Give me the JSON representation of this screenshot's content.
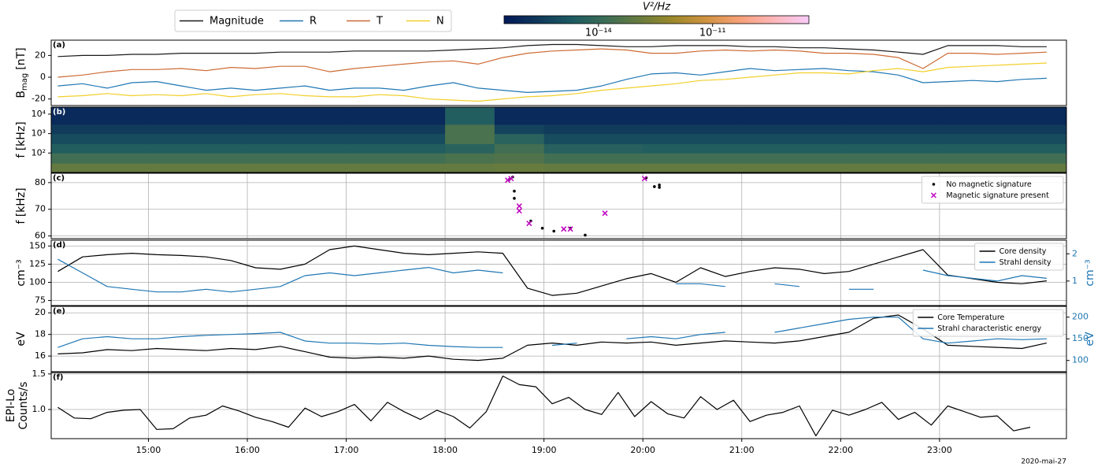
{
  "chart_data": [
    {
      "type": "line",
      "panel_label": "(a)",
      "ylabel_parts": [
        "B",
        "mag",
        "[nT]"
      ],
      "xlim": [
        "14:01",
        "00:17"
      ],
      "ylim": [
        -26,
        34
      ],
      "yticks": [
        -20,
        0,
        20
      ],
      "grid": false,
      "legend": "above",
      "x": [
        "14:05",
        "14:20",
        "14:35",
        "14:50",
        "15:05",
        "15:20",
        "15:35",
        "15:50",
        "16:05",
        "16:20",
        "16:35",
        "16:50",
        "17:05",
        "17:20",
        "17:35",
        "17:50",
        "18:05",
        "18:20",
        "18:35",
        "18:50",
        "19:05",
        "19:20",
        "19:35",
        "19:50",
        "20:05",
        "20:20",
        "20:35",
        "20:50",
        "21:05",
        "21:20",
        "21:35",
        "21:50",
        "22:05",
        "22:20",
        "22:35",
        "22:50",
        "23:05",
        "23:20",
        "23:35",
        "23:50",
        "00:05"
      ],
      "series": [
        {
          "name": "Magnitude",
          "color": "#1a1a1a",
          "values": [
            19,
            20,
            20,
            21,
            21,
            22,
            22,
            22,
            22,
            23,
            23,
            23,
            24,
            24,
            24,
            24,
            25,
            26,
            27,
            29,
            30,
            30,
            29,
            28,
            28,
            29,
            29,
            29,
            28,
            28,
            27,
            27,
            26,
            25,
            23,
            21,
            29,
            29,
            29,
            28,
            28
          ]
        },
        {
          "name": "R",
          "color": "#1f77b4",
          "values": [
            -8,
            -6,
            -10,
            -5,
            -4,
            -8,
            -12,
            -10,
            -12,
            -10,
            -8,
            -12,
            -10,
            -10,
            -12,
            -8,
            -5,
            -10,
            -12,
            -14,
            -13,
            -12,
            -8,
            -2,
            3,
            4,
            2,
            5,
            8,
            6,
            7,
            8,
            6,
            5,
            2,
            -5,
            -4,
            -3,
            -4,
            -2,
            -1
          ]
        },
        {
          "name": "T",
          "color": "#cd6a33",
          "values": [
            0,
            2,
            5,
            7,
            7,
            8,
            6,
            9,
            8,
            10,
            10,
            5,
            8,
            10,
            12,
            14,
            15,
            12,
            18,
            22,
            24,
            25,
            26,
            25,
            22,
            22,
            24,
            25,
            24,
            25,
            24,
            22,
            22,
            21,
            18,
            8,
            22,
            22,
            21,
            22,
            23
          ]
        },
        {
          "name": "N",
          "color": "#f2cf2a",
          "values": [
            -18,
            -17,
            -15,
            -17,
            -16,
            -17,
            -15,
            -18,
            -16,
            -15,
            -17,
            -18,
            -18,
            -16,
            -17,
            -20,
            -21,
            -22,
            -20,
            -18,
            -17,
            -15,
            -12,
            -10,
            -8,
            -6,
            -3,
            -2,
            0,
            2,
            4,
            4,
            3,
            6,
            8,
            5,
            9,
            10,
            11,
            12,
            13
          ]
        }
      ]
    },
    {
      "type": "heatmap",
      "panel_label": "(b)",
      "ylabel": "f [kHz]",
      "xlim": [
        "14:01",
        "00:17"
      ],
      "ylog": true,
      "ylim": [
        10,
        23000
      ],
      "yticks": [
        {
          "value": 100,
          "label": "10²"
        },
        {
          "value": 1000,
          "label": "10³"
        },
        {
          "value": 10000,
          "label": "10⁴"
        }
      ],
      "x_edges": [
        "14:01",
        "15:00",
        "16:00",
        "17:00",
        "18:00",
        "18:30",
        "19:00",
        "20:00",
        "21:00",
        "22:00",
        "23:00",
        "00:17"
      ],
      "y_edges": [
        10,
        30,
        100,
        300,
        1000,
        3000,
        23000
      ],
      "z": [
        [
          1e-13,
          1e-13,
          1e-13,
          1e-13,
          1e-13,
          1.2e-13,
          1e-13,
          1e-13,
          1e-13,
          1e-13,
          1e-13
        ],
        [
          2e-14,
          2e-14,
          2e-14,
          2e-14,
          3e-14,
          4e-14,
          2e-14,
          2e-14,
          2e-14,
          2e-14,
          2e-14
        ],
        [
          3e-15,
          3e-15,
          3e-15,
          3e-15,
          5e-15,
          2e-14,
          4e-15,
          3e-15,
          3e-15,
          3e-15,
          3e-15
        ],
        [
          8e-16,
          8e-16,
          8e-16,
          8e-16,
          3e-14,
          5e-15,
          8e-16,
          8e-16,
          8e-16,
          8e-16,
          8e-16
        ],
        [
          3e-16,
          3e-16,
          3e-16,
          3e-16,
          3e-14,
          5e-16,
          3e-16,
          3e-16,
          3e-16,
          3e-16,
          3e-16
        ],
        [
          1e-16,
          1e-16,
          1e-16,
          1e-16,
          3e-15,
          1e-16,
          1e-16,
          1e-16,
          1e-16,
          1e-16,
          1e-16
        ]
      ],
      "colorbar": {
        "label": "V²/Hz",
        "lim": [
          3.3e-17,
          3.4e-09
        ],
        "ticks": [
          {
            "value": 1e-14,
            "label": "10⁻¹⁴"
          },
          {
            "value": 1e-11,
            "label": "10⁻¹¹"
          }
        ],
        "colors": [
          "#011959",
          "#10385a",
          "#1c5a62",
          "#3c6d56",
          "#687b3e",
          "#9d892b",
          "#d29343",
          "#f8a17b",
          "#fdb7bc",
          "#faccfa"
        ]
      }
    },
    {
      "type": "scatter",
      "panel_label": "(c)",
      "ylabel": "f [kHz]",
      "xlim": [
        "14:01",
        "00:17"
      ],
      "ylim": [
        59,
        83.5
      ],
      "yticks": [
        60,
        70,
        80
      ],
      "grid": true,
      "legend": "upper right",
      "series": [
        {
          "name": "No magnetic signature",
          "color": "#000000",
          "marker": "o",
          "x": [
            "18:39",
            "18:41",
            "18:42",
            "18:42",
            "18:52",
            "18:59",
            "19:06",
            "19:16",
            "19:25",
            "20:02",
            "20:07",
            "20:10",
            "20:10"
          ],
          "values": [
            81.2,
            82.1,
            76.8,
            74.1,
            65.6,
            62.9,
            61.8,
            62.9,
            60.3,
            81.8,
            78.5,
            78.2,
            79.1
          ]
        },
        {
          "name": "Magnetic signature present",
          "color": "#bf00bf",
          "marker": "x",
          "x": [
            "18:38",
            "18:40",
            "18:45",
            "18:45",
            "18:51",
            "19:12",
            "19:16",
            "19:37",
            "20:01"
          ],
          "values": [
            80.9,
            81.5,
            71.2,
            69.4,
            64.7,
            62.6,
            62.6,
            68.5,
            81.5
          ]
        }
      ]
    },
    {
      "type": "line",
      "panel_label": "(d)",
      "ylabel": "cm⁻³",
      "y2label": "cm⁻³",
      "xlim": [
        "14:01",
        "00:17"
      ],
      "ylim": [
        68,
        158
      ],
      "yticks": [
        75,
        100,
        125,
        150
      ],
      "y2lim": [
        0.1,
        2.5
      ],
      "y2ticks": [
        1,
        2
      ],
      "grid": true,
      "legend": "upper right",
      "x": [
        "14:05",
        "14:20",
        "14:35",
        "14:50",
        "15:05",
        "15:20",
        "15:35",
        "15:50",
        "16:05",
        "16:20",
        "16:35",
        "16:50",
        "17:05",
        "17:20",
        "17:35",
        "17:50",
        "18:05",
        "18:20",
        "18:35",
        "18:50",
        "19:05",
        "19:20",
        "19:35",
        "19:50",
        "20:05",
        "20:20",
        "20:35",
        "20:50",
        "21:05",
        "21:20",
        "21:35",
        "21:50",
        "22:05",
        "22:20",
        "22:35",
        "22:50",
        "23:05",
        "23:20",
        "23:35",
        "23:50",
        "00:05"
      ],
      "series": [
        {
          "name": "Core density",
          "color": "#000000",
          "values": [
            115,
            135,
            138,
            140,
            138,
            137,
            135,
            130,
            120,
            118,
            125,
            145,
            150,
            145,
            140,
            138,
            140,
            142,
            140,
            92,
            82,
            85,
            95,
            105,
            112,
            100,
            120,
            108,
            115,
            120,
            118,
            112,
            115,
            125,
            135,
            145,
            110,
            105,
            100,
            98,
            102
          ]
        },
        {
          "name": "Strahl density",
          "color": "#1f77b4",
          "axis": "y2",
          "values": [
            1.8,
            1.3,
            0.8,
            0.7,
            0.6,
            0.6,
            0.7,
            0.6,
            0.7,
            0.8,
            1.2,
            1.3,
            1.2,
            1.3,
            1.4,
            1.5,
            1.3,
            1.4,
            1.3,
            null,
            null,
            0.7,
            null,
            1.2,
            null,
            0.9,
            0.9,
            0.8,
            null,
            0.9,
            0.8,
            null,
            0.7,
            0.7,
            null,
            1.4,
            1.2,
            1.1,
            1.0,
            1.2,
            1.1
          ]
        }
      ]
    },
    {
      "type": "line",
      "panel_label": "(e)",
      "ylabel": "eV",
      "y2label": "eV",
      "xlim": [
        "14:01",
        "00:17"
      ],
      "ylim": [
        14.55,
        20.6
      ],
      "yticks": [
        16,
        18,
        20
      ],
      "y2lim": [
        74,
        225
      ],
      "y2ticks": [
        100,
        150,
        200
      ],
      "grid": true,
      "legend": "upper right",
      "x": [
        "14:05",
        "14:20",
        "14:35",
        "14:50",
        "15:05",
        "15:20",
        "15:35",
        "15:50",
        "16:05",
        "16:20",
        "16:35",
        "16:50",
        "17:05",
        "17:20",
        "17:35",
        "17:50",
        "18:05",
        "18:20",
        "18:35",
        "18:50",
        "19:05",
        "19:20",
        "19:35",
        "19:50",
        "20:05",
        "20:20",
        "20:35",
        "20:50",
        "21:05",
        "21:20",
        "21:35",
        "21:50",
        "22:05",
        "22:20",
        "22:35",
        "22:50",
        "23:05",
        "23:20",
        "23:35",
        "23:50",
        "00:05"
      ],
      "series": [
        {
          "name": "Core Temperature",
          "color": "#000000",
          "values": [
            16.2,
            16.3,
            16.6,
            16.5,
            16.7,
            16.6,
            16.5,
            16.7,
            16.6,
            16.9,
            16.4,
            15.9,
            15.8,
            15.9,
            15.8,
            16.0,
            15.7,
            15.6,
            15.8,
            17.0,
            17.2,
            17.0,
            17.3,
            17.2,
            17.3,
            17.0,
            17.2,
            17.4,
            17.3,
            17.2,
            17.4,
            17.8,
            18.2,
            19.5,
            19.8,
            18.5,
            17.0,
            16.9,
            16.8,
            16.7,
            17.2
          ]
        },
        {
          "name": "Strahl characteristic energy",
          "color": "#1f77b4",
          "axis": "y2",
          "values": [
            130,
            150,
            155,
            150,
            150,
            155,
            158,
            160,
            162,
            165,
            145,
            140,
            140,
            138,
            140,
            135,
            132,
            130,
            130,
            null,
            135,
            140,
            null,
            150,
            155,
            150,
            160,
            165,
            null,
            165,
            175,
            185,
            195,
            200,
            200,
            150,
            140,
            145,
            150,
            148,
            150
          ]
        }
      ]
    },
    {
      "type": "line",
      "panel_label": "(f)",
      "ylabel_lines": [
        "EPI-Lo",
        "Counts/s"
      ],
      "xlim": [
        "14:01",
        "00:17"
      ],
      "ylim": [
        0.59,
        1.52
      ],
      "yticks": [
        {
          "value": 1,
          "label": "1.0"
        },
        1.5
      ],
      "grid": true,
      "xticks": [
        "15:00",
        "16:00",
        "17:00",
        "18:00",
        "19:00",
        "20:00",
        "21:00",
        "22:00",
        "23:00"
      ],
      "date": "2020-mai-27",
      "x": [
        "14:05",
        "14:15",
        "14:25",
        "14:35",
        "14:45",
        "14:55",
        "15:05",
        "15:15",
        "15:25",
        "15:35",
        "15:45",
        "15:55",
        "16:05",
        "16:15",
        "16:25",
        "16:35",
        "16:45",
        "16:55",
        "17:05",
        "17:15",
        "17:25",
        "17:35",
        "17:45",
        "17:55",
        "18:05",
        "18:15",
        "18:25",
        "18:35",
        "18:45",
        "18:55",
        "19:05",
        "19:15",
        "19:25",
        "19:35",
        "19:45",
        "19:55",
        "20:05",
        "20:15",
        "20:25",
        "20:35",
        "20:45",
        "20:55",
        "21:05",
        "21:15",
        "21:25",
        "21:35",
        "21:45",
        "21:55",
        "22:05",
        "22:15",
        "22:25",
        "22:35",
        "22:45",
        "22:55",
        "23:05",
        "23:15",
        "23:25",
        "23:35",
        "23:45",
        "23:55"
      ],
      "series": [
        {
          "color": "#000000",
          "values": [
            1.03,
            0.88,
            0.87,
            0.96,
            0.99,
            1.0,
            0.72,
            0.73,
            0.88,
            0.92,
            1.05,
            0.98,
            0.89,
            0.83,
            0.75,
            1.02,
            0.9,
            0.97,
            1.07,
            0.84,
            1.1,
            0.97,
            0.86,
            0.99,
            0.9,
            0.74,
            0.97,
            1.47,
            1.35,
            1.32,
            1.08,
            1.17,
            1.0,
            0.93,
            1.24,
            0.9,
            1.11,
            0.94,
            0.88,
            1.18,
            1.0,
            1.13,
            0.83,
            0.92,
            0.96,
            1.05,
            0.63,
            0.99,
            0.92,
            1.0,
            1.1,
            0.86,
            0.96,
            0.78,
            1.05,
            0.97,
            0.89,
            0.91,
            0.7,
            0.75
          ]
        }
      ]
    }
  ]
}
